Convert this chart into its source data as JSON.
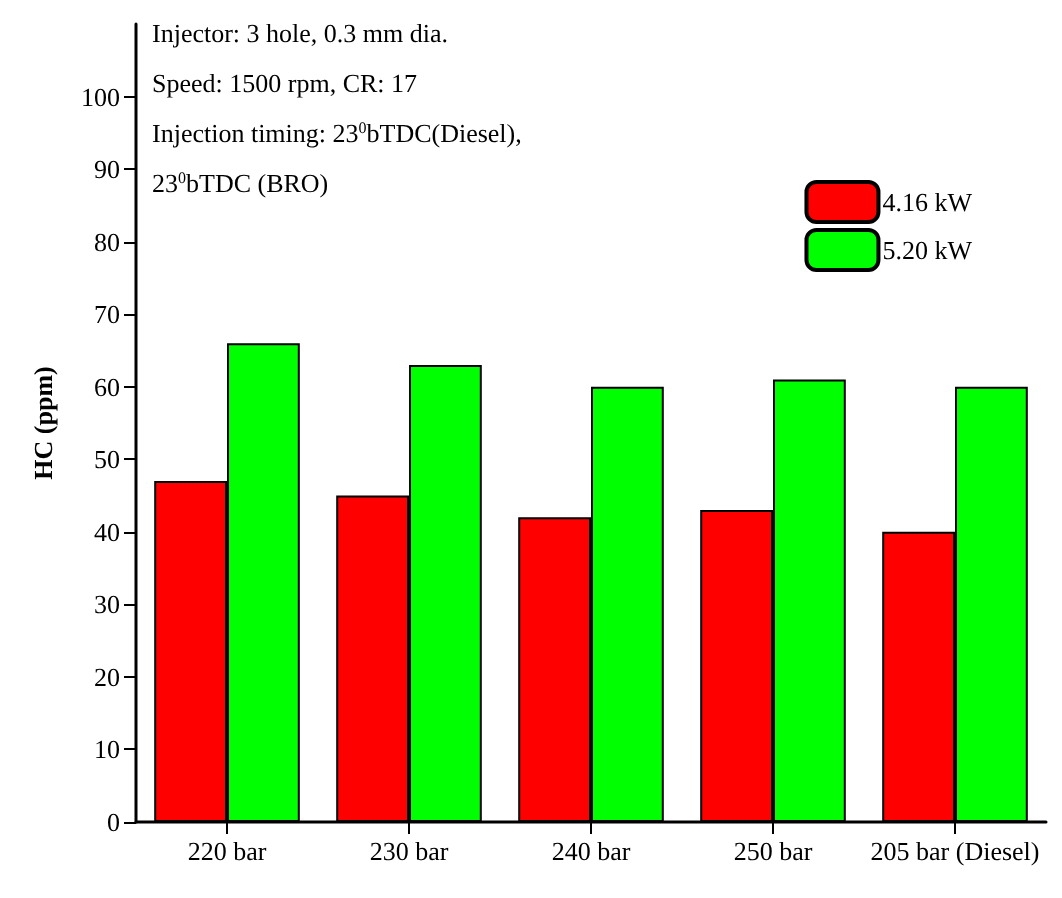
{
  "chart_data": {
    "type": "bar",
    "ylabel": "HC (ppm)",
    "categories": [
      "220 bar",
      "230 bar",
      "240 bar",
      "250 bar",
      "205 bar (Diesel)"
    ],
    "series": [
      {
        "name": "4.16 kW",
        "color": "#ff0000",
        "values": [
          47,
          45,
          42,
          43,
          40
        ]
      },
      {
        "name": "5.20 kW",
        "color": "#00ff00",
        "values": [
          66,
          63,
          60,
          61,
          60
        ]
      }
    ],
    "ylim": [
      0,
      110
    ],
    "yticks": [
      0,
      10,
      20,
      30,
      40,
      50,
      60,
      70,
      80,
      90,
      100
    ],
    "grid": false,
    "legend": "top right",
    "annotations": [
      "Injector: 3 hole, 0.3 mm dia.",
      "Speed: 1500 rpm, CR: 17",
      "Injection timing: 23$^{0}$bTDC(Diesel),",
      "23$^{0}$bTDC (BRO)"
    ]
  }
}
